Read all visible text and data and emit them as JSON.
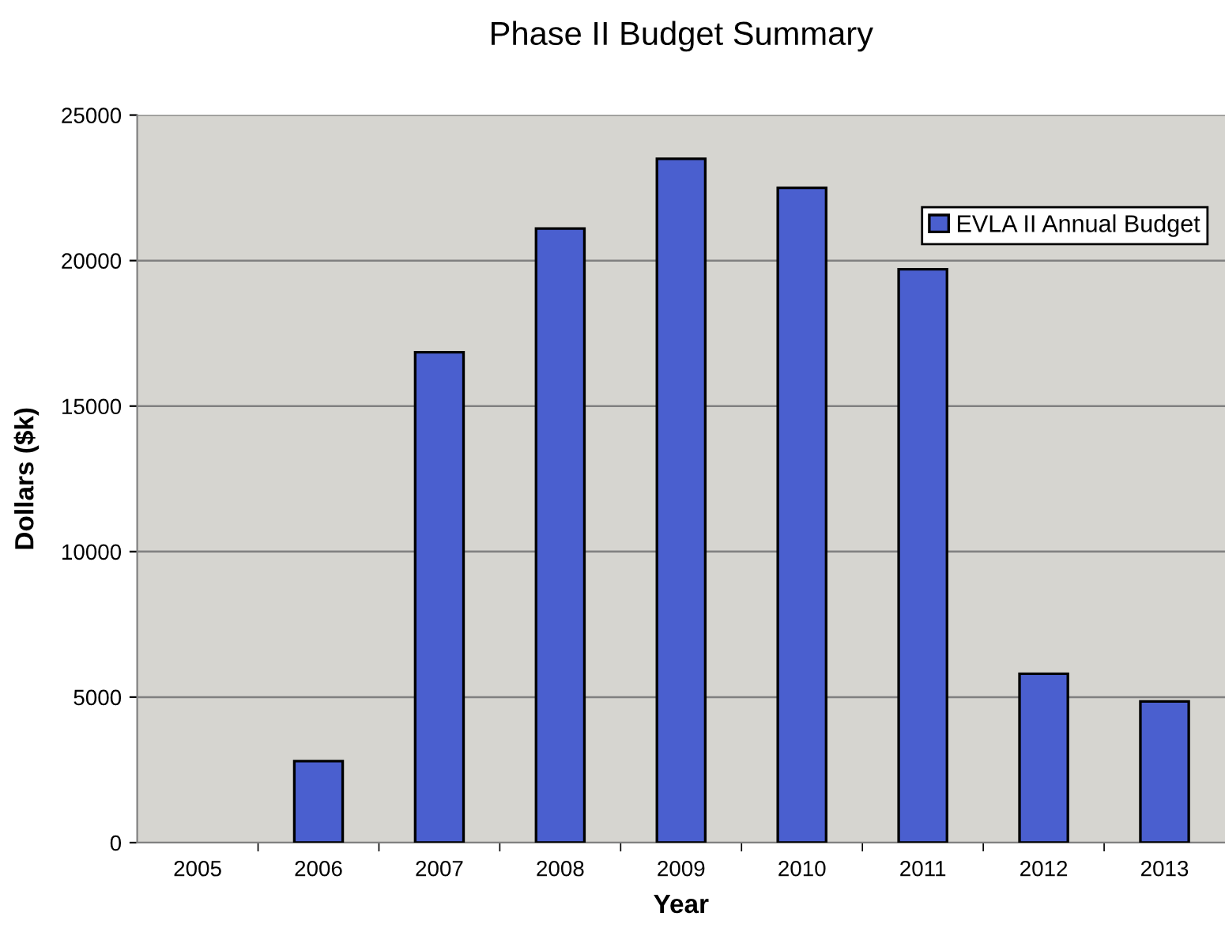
{
  "chart_data": {
    "type": "bar",
    "title": "Phase II Budget Summary",
    "xlabel": "Year",
    "ylabel": "Dollars ($k)",
    "categories": [
      "2005",
      "2006",
      "2007",
      "2008",
      "2009",
      "2010",
      "2011",
      "2012",
      "2013"
    ],
    "series": [
      {
        "name": "EVLA II Annual Budget",
        "color": "#4a5fcf",
        "values": [
          null,
          2800,
          16850,
          21100,
          23500,
          22500,
          19700,
          5800,
          4850
        ]
      }
    ],
    "ylim": [
      0,
      25000
    ],
    "yticks": [
      0,
      5000,
      10000,
      15000,
      20000,
      25000
    ],
    "grid": "y",
    "legend": "top right"
  }
}
